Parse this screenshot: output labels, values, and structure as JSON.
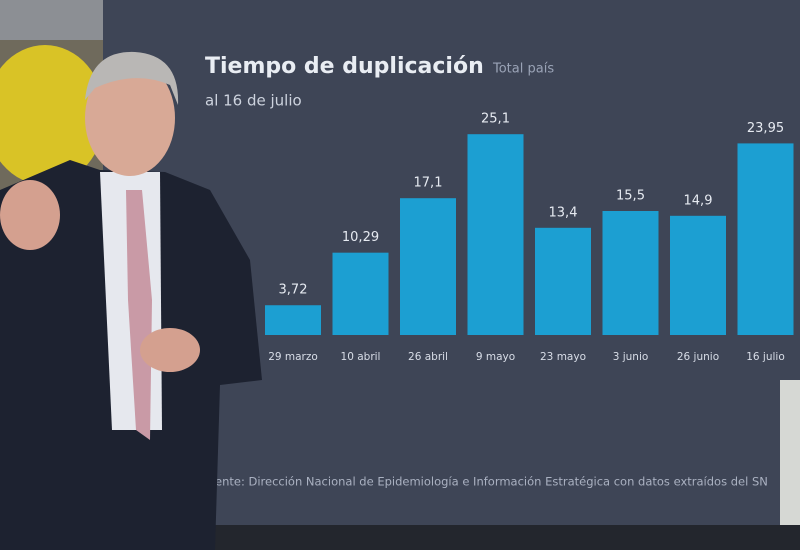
{
  "chart_data": {
    "type": "bar",
    "title": "Tiempo de duplicación",
    "subtitle": "Total país",
    "date_note": "al 16 de julio",
    "source": "ente: Dirección Nacional de Epidemiología e Información Estratégica con datos extraídos del SN",
    "categories": [
      "29 marzo",
      "10 abril",
      "26 abril",
      "9 mayo",
      "23 mayo",
      "3 junio",
      "26 junio",
      "16 julio"
    ],
    "values": [
      3.72,
      10.29,
      17.1,
      25.1,
      13.4,
      15.5,
      14.9,
      23.95
    ],
    "value_labels": [
      "3,72",
      "10,29",
      "17,1",
      "25,1",
      "13,4",
      "15,5",
      "14,9",
      "23,95"
    ],
    "color": "#1c9fd2"
  }
}
